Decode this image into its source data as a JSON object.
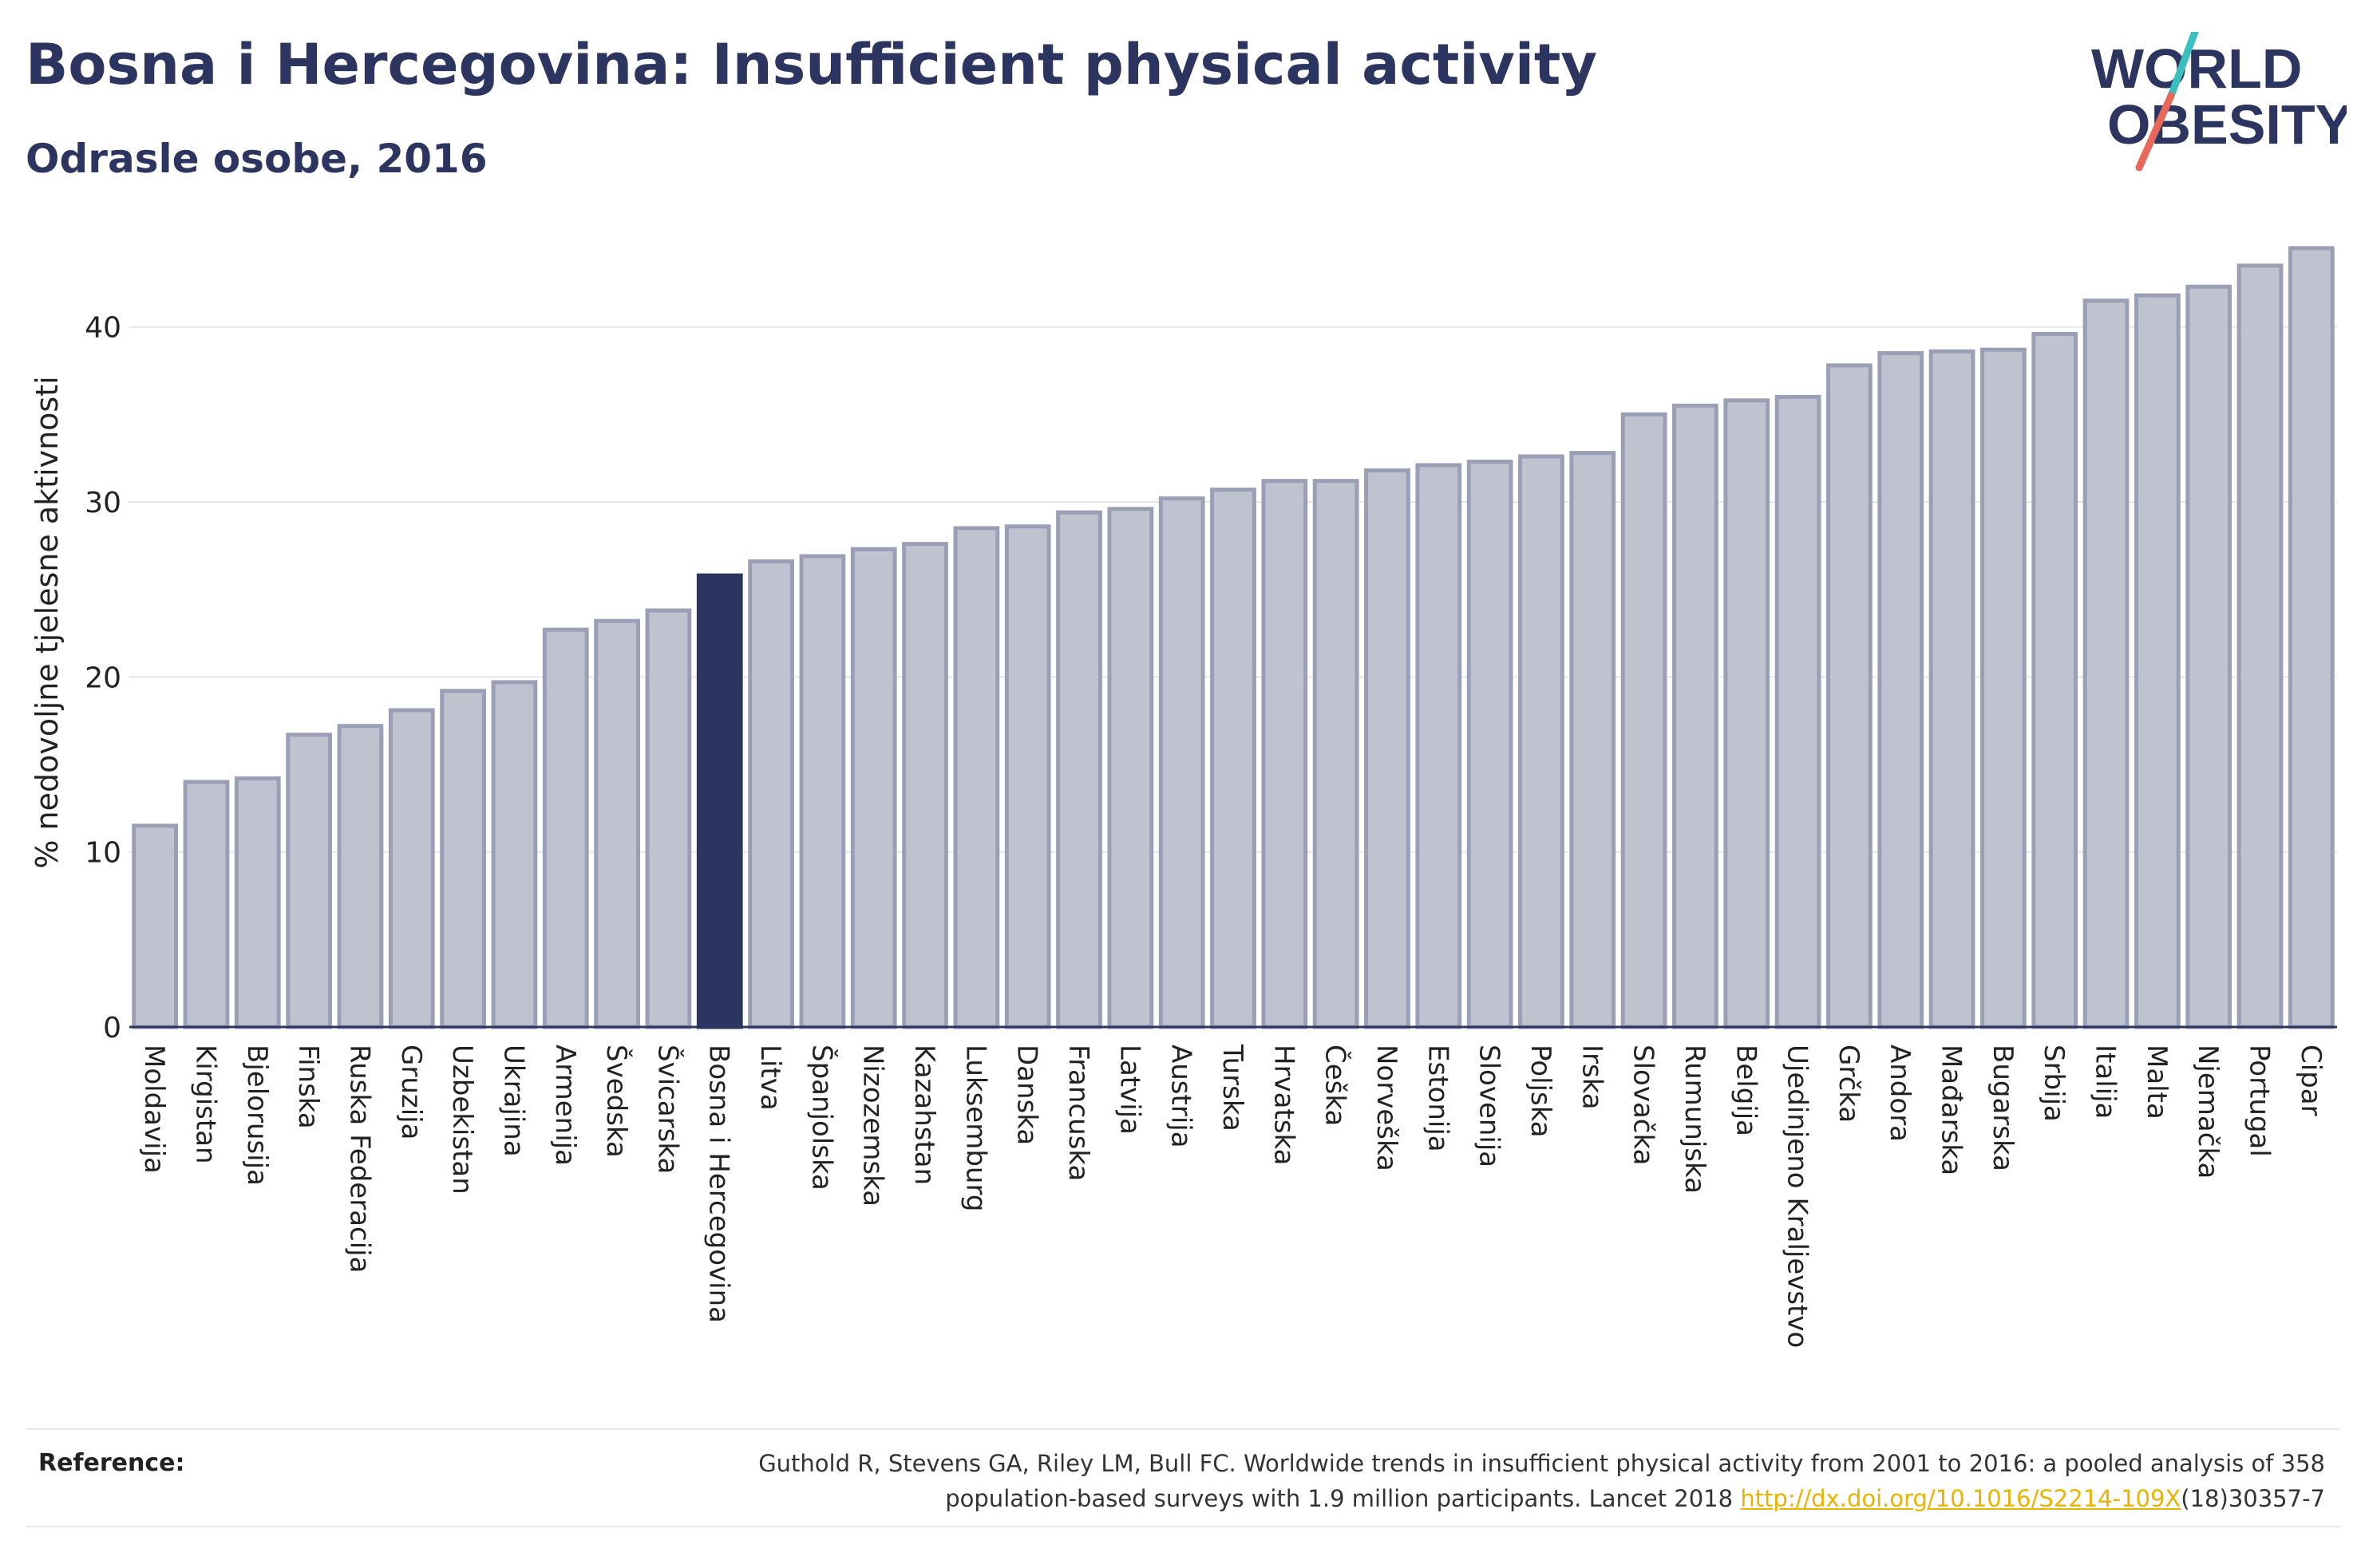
{
  "header": {
    "title": "Bosna i Hercegovina: Insufficient physical activity",
    "subtitle": "Odrasle osobe, 2016"
  },
  "logo": {
    "line1": "WORLD",
    "line2": "OBESITY",
    "colors": {
      "text": "#2c355f",
      "slash_top": "#3bbfbf",
      "slash_bottom": "#e8685a"
    }
  },
  "footer": {
    "reference_label": "Reference:",
    "reference_text_1": "Guthold R, Stevens GA, Riley LM, Bull FC. Worldwide trends in insufficient physical activity from 2001 to 2016: a pooled analysis of 358",
    "reference_text_2": "population-based surveys with 1.9 million participants. Lancet 2018 ",
    "reference_link": "http://dx.doi.org/10.1016/S2214-109X",
    "reference_text_3": "(18)30357-7"
  },
  "chart_data": {
    "type": "bar",
    "ylabel": "% nedovoljne tjelesne aktivnosti",
    "ylim": [
      0,
      45
    ],
    "yticks": [
      0,
      10,
      20,
      30,
      40
    ],
    "grid": true,
    "highlight": "Bosna i Hercegovina",
    "colors": {
      "bar": "#bfc2cf",
      "bar_border": "#9a9fb5",
      "highlight": "#2c355f",
      "axis": "#2c355f",
      "grid": "#e6e6ea"
    },
    "categories": [
      "Moldavija",
      "Kirgistan",
      "Bjelorusija",
      "Finska",
      "Ruska Federacija",
      "Gruzija",
      "Uzbekistan",
      "Ukrajina",
      "Armenija",
      "Švedska",
      "Švicarska",
      "Bosna i Hercegovina",
      "Litva",
      "Španjolska",
      "Nizozemska",
      "Kazahstan",
      "Luksemburg",
      "Danska",
      "Francuska",
      "Latvija",
      "Austrija",
      "Turska",
      "Hrvatska",
      "Češka",
      "Norveška",
      "Estonija",
      "Slovenija",
      "Poljska",
      "Irska",
      "Slovačka",
      "Rumunjska",
      "Belgija",
      "Ujedinjeno Kraljevstvo",
      "Grčka",
      "Andora",
      "Mađarska",
      "Bugarska",
      "Srbija",
      "Italija",
      "Malta",
      "Njemačka",
      "Portugal",
      "Cipar"
    ],
    "values": [
      11.5,
      14.0,
      14.2,
      16.7,
      17.2,
      18.1,
      19.2,
      19.7,
      22.7,
      23.2,
      23.8,
      25.8,
      26.6,
      26.9,
      27.3,
      27.6,
      28.5,
      28.6,
      29.4,
      29.6,
      30.2,
      30.7,
      31.2,
      31.2,
      31.8,
      32.1,
      32.3,
      32.6,
      32.8,
      35.0,
      35.5,
      35.8,
      36.0,
      37.8,
      38.5,
      38.6,
      38.7,
      39.6,
      41.5,
      41.8,
      42.3,
      43.5,
      44.5
    ]
  }
}
